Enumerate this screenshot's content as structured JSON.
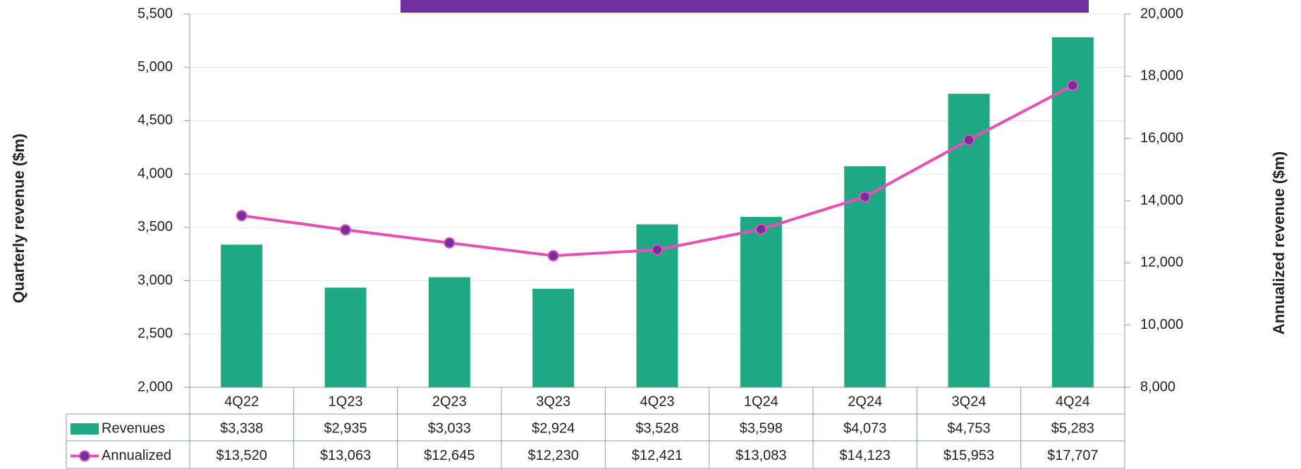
{
  "chart_data": {
    "type": "bar",
    "categories": [
      "4Q22",
      "1Q23",
      "2Q23",
      "3Q23",
      "4Q23",
      "1Q24",
      "2Q24",
      "3Q24",
      "4Q24"
    ],
    "series": [
      {
        "name": "Revenues",
        "type": "bar",
        "color": "#1fa884",
        "values": [
          3338,
          2935,
          3033,
          2924,
          3528,
          3598,
          4073,
          4753,
          5283
        ],
        "value_labels": [
          "$3,338",
          "$2,935",
          "$3,033",
          "$2,924",
          "$3,528",
          "$3,598",
          "$4,073",
          "$4,753",
          "$5,283"
        ]
      },
      {
        "name": "Annualized",
        "type": "line",
        "axis": "y2",
        "color": "#e84fb4",
        "marker_color": "#7030a0",
        "values": [
          13520,
          13063,
          12645,
          12230,
          12421,
          13083,
          14123,
          15953,
          17707
        ],
        "value_labels": [
          "$13,520",
          "$13,063",
          "$12,645",
          "$12,230",
          "$12,421",
          "$13,083",
          "$14,123",
          "$15,953",
          "$17,707"
        ]
      }
    ],
    "ylabel": "Quarterly revenue ($m)",
    "y2label": "Annualized revenue ($m)",
    "ylim": [
      2000,
      5500
    ],
    "yticks": [
      {
        "value": 2000,
        "label": "2,000"
      },
      {
        "value": 2500,
        "label": "2,500"
      },
      {
        "value": 3000,
        "label": "3,000"
      },
      {
        "value": 3500,
        "label": "3,500"
      },
      {
        "value": 4000,
        "label": "4,000"
      },
      {
        "value": 4500,
        "label": "4,500"
      },
      {
        "value": 5000,
        "label": "5,000"
      },
      {
        "value": 5500,
        "label": "5,500"
      }
    ],
    "y2lim": [
      8000,
      20000
    ],
    "y2ticks": [
      {
        "value": 8000,
        "label": "8,000"
      },
      {
        "value": 10000,
        "label": "10,000"
      },
      {
        "value": 12000,
        "label": "12,000"
      },
      {
        "value": 14000,
        "label": "14,000"
      },
      {
        "value": 16000,
        "label": "16,000"
      },
      {
        "value": 18000,
        "label": "18,000"
      },
      {
        "value": 20000,
        "label": "20,000"
      }
    ],
    "grid": true
  }
}
